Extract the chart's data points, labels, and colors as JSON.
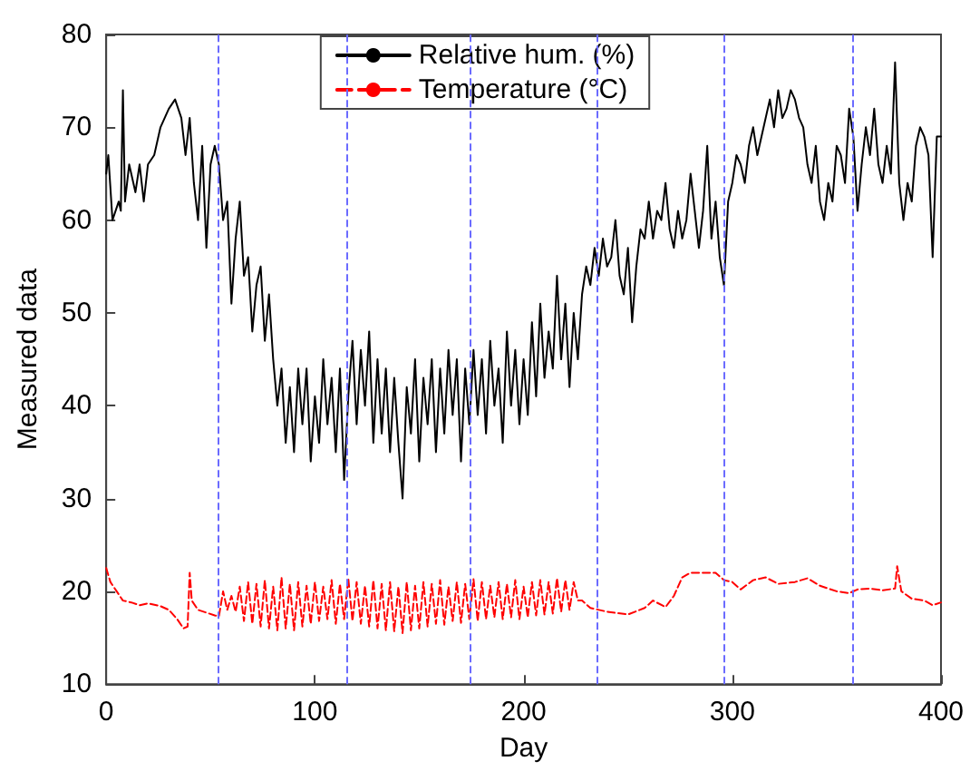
{
  "chart_data": {
    "type": "line",
    "xlabel": "Day",
    "ylabel": "Measured data",
    "xlim": [
      0,
      400
    ],
    "xticks": [
      0,
      100,
      200,
      300,
      400
    ],
    "ylim": [
      10,
      80
    ],
    "yticks": [
      10,
      20,
      30,
      40,
      50,
      60,
      70,
      80
    ],
    "grid": false,
    "legend": "top",
    "marker": "none",
    "series": [
      {
        "name": "Relative hum. (%)",
        "color": "#000000",
        "line_style": "solid",
        "x": [
          0,
          1,
          3,
          6,
          7,
          8,
          9,
          11,
          14,
          16,
          18,
          20,
          23,
          26,
          28,
          30,
          33,
          36,
          38,
          40,
          42,
          44,
          46,
          48,
          50,
          52,
          54,
          56,
          58,
          60,
          62,
          64,
          66,
          68,
          70,
          72,
          74,
          76,
          78,
          80,
          82,
          84,
          86,
          88,
          90,
          92,
          94,
          96,
          98,
          100,
          102,
          104,
          106,
          108,
          110,
          112,
          114,
          116,
          118,
          120,
          122,
          124,
          126,
          128,
          130,
          132,
          134,
          136,
          138,
          140,
          142,
          144,
          146,
          148,
          150,
          152,
          154,
          156,
          158,
          160,
          162,
          164,
          166,
          168,
          170,
          172,
          174,
          176,
          178,
          180,
          182,
          184,
          186,
          188,
          190,
          192,
          194,
          196,
          198,
          200,
          202,
          204,
          206,
          208,
          210,
          212,
          214,
          216,
          218,
          220,
          222,
          224,
          226,
          228,
          230,
          232,
          234,
          236,
          238,
          240,
          242,
          244,
          246,
          248,
          250,
          252,
          254,
          256,
          258,
          260,
          262,
          264,
          266,
          268,
          270,
          272,
          274,
          276,
          278,
          280,
          282,
          284,
          286,
          288,
          290,
          292,
          294,
          296,
          298,
          300,
          302,
          304,
          306,
          308,
          310,
          312,
          314,
          316,
          318,
          320,
          322,
          324,
          326,
          328,
          330,
          332,
          334,
          336,
          338,
          340,
          342,
          344,
          346,
          348,
          350,
          352,
          354,
          356,
          358,
          360,
          362,
          364,
          366,
          368,
          370,
          372,
          374,
          376,
          378,
          380,
          382,
          384,
          386,
          388,
          390,
          392,
          394,
          396,
          398,
          400
        ],
        "values": [
          65,
          67,
          60,
          62,
          61,
          74,
          62,
          66,
          63,
          66,
          62,
          66,
          67,
          70,
          71,
          72,
          73,
          71,
          67,
          71,
          64,
          60,
          68,
          57,
          66,
          68,
          66,
          60,
          62,
          51,
          58,
          62,
          54,
          56,
          48,
          53,
          55,
          47,
          52,
          45,
          40,
          44,
          36,
          42,
          35,
          44,
          38,
          44,
          34,
          41,
          36,
          45,
          38,
          43,
          35,
          44,
          32,
          41,
          47,
          38,
          46,
          40,
          48,
          36,
          45,
          37,
          44,
          35,
          43,
          36,
          30,
          42,
          37,
          45,
          34,
          43,
          38,
          45,
          35,
          44,
          37,
          46,
          39,
          45,
          34,
          44,
          38,
          46,
          39,
          45,
          37,
          47,
          40,
          44,
          36,
          48,
          40,
          46,
          38,
          45,
          39,
          49,
          41,
          51,
          43,
          48,
          44,
          54,
          45,
          51,
          42,
          50,
          45,
          52,
          55,
          53,
          57,
          54,
          58,
          55,
          56,
          60,
          54,
          52,
          57,
          49,
          55,
          59,
          58,
          62,
          58,
          61,
          60,
          64,
          59,
          57,
          61,
          58,
          60,
          65,
          61,
          57,
          61,
          68,
          58,
          62,
          56,
          53,
          62,
          64,
          67,
          66,
          64,
          68,
          70,
          67,
          69,
          71,
          73,
          70,
          74,
          71,
          72,
          74,
          73,
          71,
          70,
          66,
          64,
          68,
          62,
          60,
          64,
          62,
          68,
          67,
          64,
          72,
          69,
          61,
          66,
          70,
          67,
          72,
          66,
          64,
          68,
          65,
          77,
          64,
          60,
          64,
          62,
          68,
          70,
          69,
          67,
          56,
          69,
          69
        ]
      },
      {
        "name": "Temperature (°C)",
        "color": "#ff0000",
        "line_style": "dashed",
        "x": [
          0,
          2,
          5,
          8,
          12,
          16,
          20,
          26,
          30,
          34,
          37,
          39,
          40,
          41,
          44,
          48,
          52,
          54,
          56,
          58,
          60,
          62,
          64,
          66,
          68,
          70,
          72,
          74,
          76,
          78,
          80,
          82,
          84,
          86,
          88,
          90,
          92,
          94,
          96,
          98,
          100,
          102,
          104,
          106,
          108,
          110,
          112,
          114,
          116,
          118,
          120,
          122,
          124,
          126,
          128,
          130,
          132,
          134,
          136,
          138,
          140,
          142,
          144,
          146,
          148,
          150,
          152,
          154,
          156,
          158,
          160,
          162,
          164,
          166,
          168,
          170,
          172,
          174,
          176,
          178,
          180,
          182,
          184,
          186,
          188,
          190,
          192,
          194,
          196,
          198,
          200,
          202,
          204,
          206,
          208,
          210,
          212,
          214,
          216,
          218,
          220,
          222,
          224,
          226,
          228,
          232,
          240,
          250,
          258,
          262,
          268,
          272,
          276,
          280,
          286,
          292,
          296,
          300,
          304,
          310,
          316,
          322,
          330,
          336,
          342,
          350,
          356,
          360,
          366,
          372,
          378,
          379,
          381,
          386,
          392,
          396,
          400
        ],
        "values": [
          22.5,
          21,
          20,
          19,
          18.8,
          18.5,
          18.7,
          18.4,
          18,
          17,
          16,
          16.2,
          22,
          19,
          18,
          17.7,
          17.4,
          17.3,
          20,
          18,
          19.5,
          17.8,
          20.5,
          16.8,
          21,
          16.5,
          20.8,
          16.2,
          21.2,
          16,
          20.5,
          15.8,
          21.5,
          16,
          20.8,
          15.8,
          21,
          16.2,
          20.6,
          16.5,
          21,
          16.8,
          20.5,
          17,
          21.2,
          16.5,
          20.8,
          17,
          21.4,
          16.8,
          21,
          16.5,
          20.6,
          16.2,
          21.2,
          16,
          20.8,
          15.8,
          21,
          15.7,
          20.5,
          15.5,
          21,
          15.8,
          20.6,
          16,
          21,
          16.2,
          20.8,
          16.5,
          21.2,
          16.4,
          20.5,
          16.8,
          21,
          16.6,
          20.8,
          17,
          21.3,
          16.8,
          21,
          17,
          20.6,
          17.2,
          21,
          17,
          20.8,
          17.2,
          21.2,
          17,
          20.5,
          17.2,
          21,
          17.4,
          21.2,
          17.5,
          21,
          17.6,
          21.4,
          17.8,
          21.2,
          18,
          21,
          19,
          19,
          18.2,
          17.8,
          17.5,
          18.2,
          19,
          18.3,
          19.5,
          21.5,
          22,
          22,
          22,
          21.2,
          21,
          20.2,
          21.2,
          21.5,
          20.8,
          21,
          21.4,
          20.6,
          20,
          19.8,
          20.2,
          20.3,
          20.1,
          20.3,
          22.7,
          20,
          19.2,
          19,
          18.5,
          18.8
        ]
      }
    ],
    "ref_lines": [
      {
        "axis": "x",
        "value": 54,
        "color": "#6b6bff",
        "line_style": "dashed"
      },
      {
        "axis": "x",
        "value": 115,
        "color": "#6b6bff",
        "line_style": "dashed"
      },
      {
        "axis": "x",
        "value": 174,
        "color": "#6b6bff",
        "line_style": "dashed"
      },
      {
        "axis": "x",
        "value": 235,
        "color": "#6b6bff",
        "line_style": "dashed"
      },
      {
        "axis": "x",
        "value": 296,
        "color": "#6b6bff",
        "line_style": "dashed"
      },
      {
        "axis": "x",
        "value": 358,
        "color": "#6b6bff",
        "line_style": "dashed"
      }
    ]
  }
}
